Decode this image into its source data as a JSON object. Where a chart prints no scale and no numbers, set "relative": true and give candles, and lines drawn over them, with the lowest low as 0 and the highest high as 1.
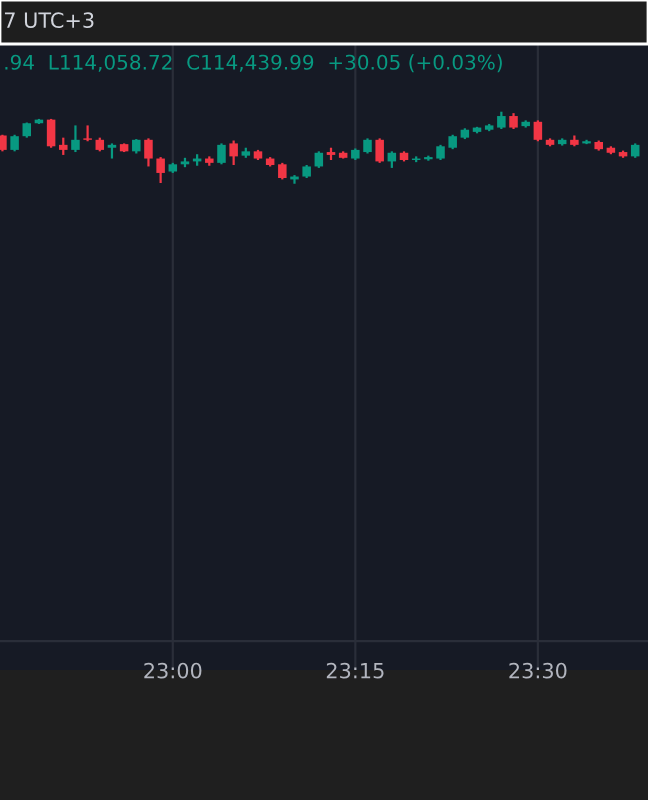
{
  "chart_data": {
    "type": "candlestick",
    "relative": true,
    "grid": "x",
    "annotations": [
      "7 UTC+3",
      ".94  L114,058.72  C114,439.99  +30.05 (+0.03%)"
    ],
    "categories": [
      null,
      null,
      null,
      null,
      null,
      null,
      null,
      null,
      null,
      null,
      null,
      null,
      null,
      null,
      "23:00",
      null,
      null,
      null,
      null,
      null,
      null,
      null,
      null,
      null,
      null,
      null,
      null,
      null,
      null,
      "23:15",
      null,
      null,
      null,
      null,
      null,
      null,
      null,
      null,
      null,
      null,
      null,
      null,
      null,
      null,
      "23:30",
      null,
      null,
      null,
      null,
      null,
      null,
      null,
      null
    ],
    "colors": [
      "#f23645",
      "#089981",
      "#089981",
      "#089981",
      "#f23645",
      "#f23645",
      "#089981",
      "#f23645",
      "#f23645",
      "#089981",
      "#f23645",
      "#089981",
      "#f23645",
      "#f23645",
      "#089981",
      "#089981",
      "#089981",
      "#f23645",
      "#089981",
      "#f23645",
      "#089981",
      "#f23645",
      "#f23645",
      "#f23645",
      "#089981",
      "#089981",
      "#089981",
      "#f23645",
      "#f23645",
      "#089981",
      "#089981",
      "#f23645",
      "#089981",
      "#f23645",
      "#089981",
      "#089981",
      "#089981",
      "#089981",
      "#089981",
      "#089981",
      "#089981",
      "#089981",
      "#f23645",
      "#089981",
      "#f23645",
      "#f23645",
      "#089981",
      "#f23645",
      "#089981",
      "#f23645",
      "#f23645",
      "#f23645",
      "#089981"
    ],
    "ohlc": [
      [
        0.67,
        0.68,
        0.45,
        0.47
      ],
      [
        0.47,
        0.68,
        0.45,
        0.66
      ],
      [
        0.66,
        0.85,
        0.64,
        0.84
      ],
      [
        0.84,
        0.9,
        0.83,
        0.89
      ],
      [
        0.89,
        0.9,
        0.5,
        0.52
      ],
      [
        0.54,
        0.64,
        0.4,
        0.47
      ],
      [
        0.47,
        0.81,
        0.44,
        0.61
      ],
      [
        0.63,
        0.81,
        0.59,
        0.61
      ],
      [
        0.61,
        0.64,
        0.45,
        0.47
      ],
      [
        0.5,
        0.56,
        0.35,
        0.54
      ],
      [
        0.55,
        0.56,
        0.44,
        0.45
      ],
      [
        0.45,
        0.62,
        0.42,
        0.61
      ],
      [
        0.61,
        0.63,
        0.24,
        0.35
      ],
      [
        0.35,
        0.37,
        0.01,
        0.15
      ],
      [
        0.17,
        0.29,
        0.15,
        0.27
      ],
      [
        0.27,
        0.36,
        0.23,
        0.31
      ],
      [
        0.31,
        0.41,
        0.25,
        0.35
      ],
      [
        0.35,
        0.38,
        0.25,
        0.29
      ],
      [
        0.29,
        0.56,
        0.27,
        0.54
      ],
      [
        0.56,
        0.6,
        0.26,
        0.38
      ],
      [
        0.39,
        0.5,
        0.36,
        0.45
      ],
      [
        0.45,
        0.47,
        0.33,
        0.35
      ],
      [
        0.35,
        0.37,
        0.24,
        0.26
      ],
      [
        0.27,
        0.29,
        0.06,
        0.08
      ],
      [
        0.06,
        0.12,
        0.0,
        0.1
      ],
      [
        0.1,
        0.26,
        0.08,
        0.24
      ],
      [
        0.24,
        0.45,
        0.22,
        0.43
      ],
      [
        0.44,
        0.5,
        0.33,
        0.4
      ],
      [
        0.43,
        0.45,
        0.35,
        0.36
      ],
      [
        0.35,
        0.49,
        0.33,
        0.47
      ],
      [
        0.44,
        0.63,
        0.42,
        0.61
      ],
      [
        0.61,
        0.63,
        0.29,
        0.31
      ],
      [
        0.31,
        0.45,
        0.22,
        0.43
      ],
      [
        0.43,
        0.45,
        0.31,
        0.33
      ],
      [
        0.33,
        0.38,
        0.3,
        0.35
      ],
      [
        0.34,
        0.39,
        0.32,
        0.37
      ],
      [
        0.35,
        0.54,
        0.33,
        0.52
      ],
      [
        0.5,
        0.68,
        0.48,
        0.66
      ],
      [
        0.64,
        0.77,
        0.62,
        0.75
      ],
      [
        0.72,
        0.79,
        0.7,
        0.78
      ],
      [
        0.75,
        0.83,
        0.73,
        0.81
      ],
      [
        0.78,
        1.0,
        0.76,
        0.94
      ],
      [
        0.94,
        0.98,
        0.76,
        0.78
      ],
      [
        0.8,
        0.88,
        0.78,
        0.86
      ],
      [
        0.86,
        0.88,
        0.59,
        0.61
      ],
      [
        0.61,
        0.63,
        0.52,
        0.54
      ],
      [
        0.55,
        0.63,
        0.53,
        0.61
      ],
      [
        0.61,
        0.67,
        0.52,
        0.54
      ],
      [
        0.56,
        0.61,
        0.55,
        0.59
      ],
      [
        0.58,
        0.6,
        0.46,
        0.48
      ],
      [
        0.5,
        0.52,
        0.41,
        0.43
      ],
      [
        0.44,
        0.46,
        0.36,
        0.38
      ],
      [
        0.38,
        0.56,
        0.36,
        0.54
      ]
    ]
  }
}
